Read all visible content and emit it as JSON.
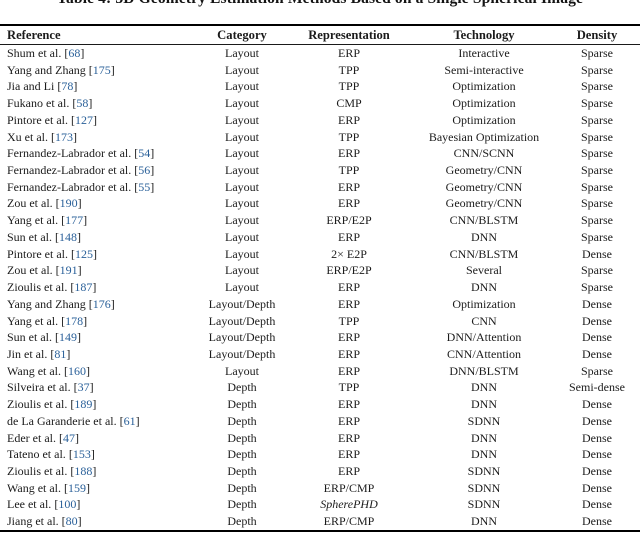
{
  "caption": "Table 4: 3D Geometry Estimation Methods Based on a Single Spherical Image",
  "colors": {
    "citation_blue": "#2a6099",
    "text": "#1b1b1b",
    "rule": "#000000"
  },
  "table": {
    "columns": [
      "Reference",
      "Category",
      "Representation",
      "Technology",
      "Density"
    ],
    "citation_brackets": [
      "[",
      "]"
    ],
    "rows": [
      {
        "reference": "Shum et al.",
        "citation": "68",
        "category": "Layout",
        "representation": "ERP",
        "technology": "Interactive",
        "density": "Sparse"
      },
      {
        "reference": "Yang and Zhang",
        "citation": "175",
        "category": "Layout",
        "representation": "TPP",
        "technology": "Semi-interactive",
        "density": "Sparse"
      },
      {
        "reference": "Jia and Li",
        "citation": "78",
        "category": "Layout",
        "representation": "TPP",
        "technology": "Optimization",
        "density": "Sparse"
      },
      {
        "reference": "Fukano et al.",
        "citation": "58",
        "category": "Layout",
        "representation": "CMP",
        "technology": "Optimization",
        "density": "Sparse"
      },
      {
        "reference": "Pintore et al.",
        "citation": "127",
        "category": "Layout",
        "representation": "ERP",
        "technology": "Optimization",
        "density": "Sparse"
      },
      {
        "reference": "Xu et al.",
        "citation": "173",
        "category": "Layout",
        "representation": "TPP",
        "technology": "Bayesian Optimization",
        "density": "Sparse"
      },
      {
        "reference": "Fernandez-Labrador et al.",
        "citation": "54",
        "category": "Layout",
        "representation": "ERP",
        "technology": "CNN/SCNN",
        "density": "Sparse"
      },
      {
        "reference": "Fernandez-Labrador et al.",
        "citation": "56",
        "category": "Layout",
        "representation": "TPP",
        "technology": "Geometry/CNN",
        "density": "Sparse"
      },
      {
        "reference": "Fernandez-Labrador et al.",
        "citation": "55",
        "category": "Layout",
        "representation": "ERP",
        "technology": "Geometry/CNN",
        "density": "Sparse"
      },
      {
        "reference": "Zou et al.",
        "citation": "190",
        "category": "Layout",
        "representation": "ERP",
        "technology": "Geometry/CNN",
        "density": "Sparse"
      },
      {
        "reference": "Yang et al.",
        "citation": "177",
        "category": "Layout",
        "representation": "ERP/E2P",
        "technology": "CNN/BLSTM",
        "density": "Sparse"
      },
      {
        "reference": "Sun et al.",
        "citation": "148",
        "category": "Layout",
        "representation": "ERP",
        "technology": "DNN",
        "density": "Sparse"
      },
      {
        "reference": "Pintore et al.",
        "citation": "125",
        "category": "Layout",
        "representation": "2× E2P",
        "technology": "CNN/BLSTM",
        "density": "Dense"
      },
      {
        "reference": "Zou et al.",
        "citation": "191",
        "category": "Layout",
        "representation": "ERP/E2P",
        "technology": "Several",
        "density": "Sparse"
      },
      {
        "reference": "Zioulis et al.",
        "citation": "187",
        "category": "Layout",
        "representation": "ERP",
        "technology": "DNN",
        "density": "Sparse"
      },
      {
        "reference": "Yang and Zhang",
        "citation": "176",
        "category": "Layout/Depth",
        "representation": "ERP",
        "technology": "Optimization",
        "density": "Dense"
      },
      {
        "reference": "Yang et al.",
        "citation": "178",
        "category": "Layout/Depth",
        "representation": "TPP",
        "technology": "CNN",
        "density": "Dense"
      },
      {
        "reference": "Sun et al.",
        "citation": "149",
        "category": "Layout/Depth",
        "representation": "ERP",
        "technology": "DNN/Attention",
        "density": "Dense"
      },
      {
        "reference": "Jin et al.",
        "citation": "81",
        "category": "Layout/Depth",
        "representation": "ERP",
        "technology": "CNN/Attention",
        "density": "Dense"
      },
      {
        "reference": "Wang et al.",
        "citation": "160",
        "category": "Layout",
        "representation": "ERP",
        "technology": "DNN/BLSTM",
        "density": "Sparse"
      },
      {
        "reference": "Silveira et al.",
        "citation": "37",
        "category": "Depth",
        "representation": "TPP",
        "technology": "DNN",
        "density": "Semi-dense"
      },
      {
        "reference": "Zioulis et al.",
        "citation": "189",
        "category": "Depth",
        "representation": "ERP",
        "technology": "DNN",
        "density": "Dense"
      },
      {
        "reference": "de La Garanderie et al.",
        "citation": "61",
        "category": "Depth",
        "representation": "ERP",
        "technology": "SDNN",
        "density": "Dense"
      },
      {
        "reference": "Eder et al.",
        "citation": "47",
        "category": "Depth",
        "representation": "ERP",
        "technology": "DNN",
        "density": "Dense"
      },
      {
        "reference": "Tateno et al.",
        "citation": "153",
        "category": "Depth",
        "representation": "ERP",
        "technology": "DNN",
        "density": "Dense"
      },
      {
        "reference": "Zioulis et al.",
        "citation": "188",
        "category": "Depth",
        "representation": "ERP",
        "technology": "SDNN",
        "density": "Dense"
      },
      {
        "reference": "Wang et al.",
        "citation": "159",
        "category": "Depth",
        "representation": "ERP/CMP",
        "technology": "SDNN",
        "density": "Dense"
      },
      {
        "reference": "Lee et al.",
        "citation": "100",
        "category": "Depth",
        "representation": "SpherePHD",
        "representation_italic": true,
        "technology": "SDNN",
        "density": "Dense"
      },
      {
        "reference": "Jiang et al.",
        "citation": "80",
        "category": "Depth",
        "representation": "ERP/CMP",
        "technology": "DNN",
        "density": "Dense"
      }
    ]
  }
}
